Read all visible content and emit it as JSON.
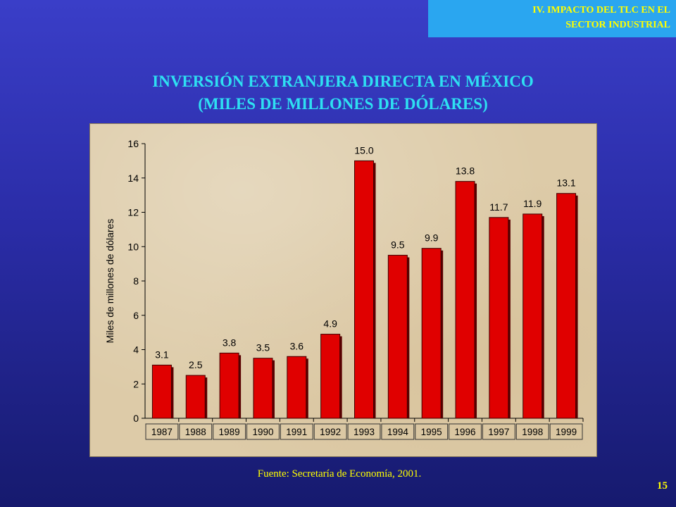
{
  "header": {
    "section_line1": "IV. IMPACTO DEL TLC EN EL",
    "section_line2": "SECTOR INDUSTRIAL"
  },
  "title_line1": "INVERSIÓN EXTRANJERA DIRECTA EN MÉXICO",
  "title_line2": "(MILES DE MILLONES DE DÓLARES)",
  "source": "Fuente: Secretaría de Economía, 2001.",
  "page_number": "15",
  "colors": {
    "bar": "#e00000",
    "title": "#2ee0f2",
    "accent_text": "#ffff00"
  },
  "chart_data": {
    "type": "bar",
    "title": "INVERSIÓN EXTRANJERA DIRECTA EN MÉXICO (MILES DE MILLONES DE DÓLARES)",
    "xlabel": "",
    "ylabel": "Miles de millones de dólares",
    "categories": [
      "1987",
      "1988",
      "1989",
      "1990",
      "1991",
      "1992",
      "1993",
      "1994",
      "1995",
      "1996",
      "1997",
      "1998",
      "1999"
    ],
    "values": [
      3.1,
      2.5,
      3.8,
      3.5,
      3.6,
      4.9,
      15.0,
      9.5,
      9.9,
      13.8,
      11.7,
      11.9,
      13.1
    ],
    "value_labels": [
      "3.1",
      "2.5",
      "3.8",
      "3.5",
      "3.6",
      "4.9",
      "15.0",
      "9.5",
      "9.9",
      "13.8",
      "11.7",
      "11.9",
      "13.1"
    ],
    "ylim": [
      0,
      16
    ],
    "yticks": [
      0,
      2,
      4,
      6,
      8,
      10,
      12,
      14,
      16
    ],
    "grid": false,
    "legend": "none"
  }
}
